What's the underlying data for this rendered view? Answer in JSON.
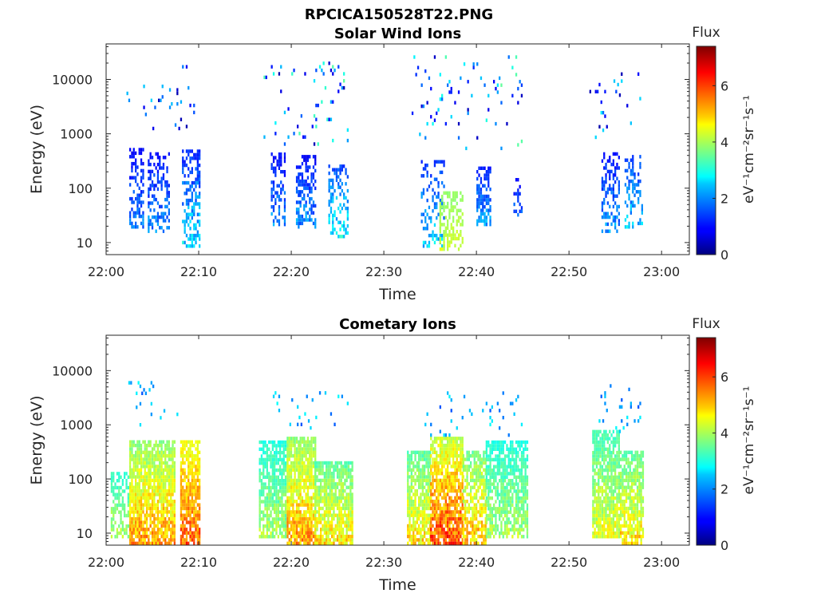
{
  "figure_title": "RPCICA150528T22.PNG",
  "chart_data": [
    {
      "type": "heatmap",
      "title": "Solar Wind Ions",
      "xlabel": "Time",
      "ylabel": "Energy (eV)",
      "x_ticks": [
        "22:00",
        "22:10",
        "22:20",
        "22:30",
        "22:40",
        "22:50",
        "23:00"
      ],
      "x_range_minutes": [
        0,
        63
      ],
      "y_scale": "log",
      "y_ticks": [
        "10",
        "100",
        "1000",
        "10000"
      ],
      "y_range": [
        6,
        45000
      ],
      "colorbar": {
        "label": "Flux",
        "units": "eV⁻¹cm⁻²sr⁻¹s⁻¹",
        "range": [
          0,
          7.4
        ],
        "ticks": [
          "0",
          "2",
          "4",
          "6"
        ]
      },
      "colormap": "jet",
      "bursts": [
        {
          "t": [
            2.5,
            4.0
          ],
          "e": [
            18,
            500
          ],
          "flux": [
            0.3,
            2.2
          ],
          "density": 0.45
        },
        {
          "t": [
            4.5,
            6.8
          ],
          "e": [
            15,
            450
          ],
          "flux": [
            0.3,
            2.4
          ],
          "density": 0.4
        },
        {
          "t": [
            8.2,
            10.0
          ],
          "e": [
            8,
            450
          ],
          "flux": [
            0.3,
            3.2
          ],
          "density": 0.45
        },
        {
          "t": [
            17.8,
            19.2
          ],
          "e": [
            20,
            400
          ],
          "flux": [
            0.2,
            2.5
          ],
          "density": 0.4
        },
        {
          "t": [
            20.5,
            22.5
          ],
          "e": [
            18,
            400
          ],
          "flux": [
            0.2,
            2.5
          ],
          "density": 0.5
        },
        {
          "t": [
            24.0,
            26.0
          ],
          "e": [
            12,
            250
          ],
          "flux": [
            0.5,
            3.5
          ],
          "density": 0.4
        },
        {
          "t": [
            34.0,
            36.5
          ],
          "e": [
            8,
            300
          ],
          "flux": [
            0.5,
            3.0
          ],
          "density": 0.3
        },
        {
          "t": [
            36.0,
            38.5
          ],
          "e": [
            7,
            80
          ],
          "flux": [
            3.5,
            4.5
          ],
          "density": 0.5
        },
        {
          "t": [
            40.0,
            41.5
          ],
          "e": [
            20,
            250
          ],
          "flux": [
            0.4,
            2.6
          ],
          "density": 0.55
        },
        {
          "t": [
            44.0,
            45.0
          ],
          "e": [
            30,
            150
          ],
          "flux": [
            0.3,
            2.0
          ],
          "density": 0.3
        },
        {
          "t": [
            53.5,
            55.5
          ],
          "e": [
            15,
            450
          ],
          "flux": [
            0.3,
            2.5
          ],
          "density": 0.45
        },
        {
          "t": [
            56.0,
            58.0
          ],
          "e": [
            18,
            400
          ],
          "flux": [
            0.5,
            3.0
          ],
          "density": 0.35
        }
      ],
      "sparse": [
        {
          "t": [
            2,
            8
          ],
          "e": [
            1000,
            8000
          ],
          "flux": [
            0.3,
            2.5
          ]
        },
        {
          "t": [
            8,
            10
          ],
          "e": [
            600,
            18000
          ],
          "flux": [
            0.3,
            2.5
          ]
        },
        {
          "t": [
            17,
            26
          ],
          "e": [
            600,
            20000
          ],
          "flux": [
            0.3,
            3.5
          ]
        },
        {
          "t": [
            33,
            45
          ],
          "e": [
            500,
            25000
          ],
          "flux": [
            0.3,
            3.5
          ]
        },
        {
          "t": [
            52,
            58
          ],
          "e": [
            800,
            12000
          ],
          "flux": [
            0.3,
            3.0
          ]
        }
      ]
    },
    {
      "type": "heatmap",
      "title": "Cometary Ions",
      "xlabel": "Time",
      "ylabel": "Energy (eV)",
      "x_ticks": [
        "22:00",
        "22:10",
        "22:20",
        "22:30",
        "22:40",
        "22:50",
        "23:00"
      ],
      "x_range_minutes": [
        0,
        63
      ],
      "y_scale": "log",
      "y_ticks": [
        "10",
        "100",
        "1000",
        "10000"
      ],
      "y_range": [
        6,
        45000
      ],
      "colorbar": {
        "label": "Flux",
        "units": "eV⁻¹cm⁻²sr⁻¹s⁻¹",
        "range": [
          0,
          7.4
        ],
        "ticks": [
          "0",
          "2",
          "4",
          "6"
        ]
      },
      "colormap": "jet",
      "bursts": [
        {
          "t": [
            0.5,
            2.5
          ],
          "e": [
            8,
            120
          ],
          "flux": [
            2.5,
            4.5
          ],
          "density": 0.45
        },
        {
          "t": [
            2.5,
            7.5
          ],
          "e": [
            6,
            500
          ],
          "flux": [
            2.8,
            6.0
          ],
          "density": 0.85
        },
        {
          "t": [
            8.0,
            10.0
          ],
          "e": [
            6,
            500
          ],
          "flux": [
            3.5,
            6.5
          ],
          "density": 0.8
        },
        {
          "t": [
            16.5,
            19.5
          ],
          "e": [
            8,
            500
          ],
          "flux": [
            2.3,
            4.5
          ],
          "density": 0.8
        },
        {
          "t": [
            19.5,
            22.5
          ],
          "e": [
            6,
            600
          ],
          "flux": [
            2.8,
            6.0
          ],
          "density": 0.85
        },
        {
          "t": [
            22.5,
            26.5
          ],
          "e": [
            6,
            200
          ],
          "flux": [
            2.5,
            5.5
          ],
          "density": 0.85
        },
        {
          "t": [
            32.5,
            35.0
          ],
          "e": [
            6,
            300
          ],
          "flux": [
            2.5,
            5.5
          ],
          "density": 0.8
        },
        {
          "t": [
            35.0,
            38.5
          ],
          "e": [
            6,
            600
          ],
          "flux": [
            3.0,
            6.8
          ],
          "density": 0.85
        },
        {
          "t": [
            38.5,
            41.0
          ],
          "e": [
            6,
            300
          ],
          "flux": [
            2.5,
            6.0
          ],
          "density": 0.7
        },
        {
          "t": [
            41.0,
            45.5
          ],
          "e": [
            8,
            500
          ],
          "flux": [
            2.3,
            4.5
          ],
          "density": 0.75
        },
        {
          "t": [
            52.5,
            55.5
          ],
          "e": [
            8,
            700
          ],
          "flux": [
            2.5,
            5.0
          ],
          "density": 0.8
        },
        {
          "t": [
            55.5,
            58.0
          ],
          "e": [
            6,
            300
          ],
          "flux": [
            2.5,
            5.5
          ],
          "density": 0.75
        }
      ],
      "sparse": [
        {
          "t": [
            2,
            8
          ],
          "e": [
            800,
            6500
          ],
          "flux": [
            1.5,
            2.8
          ]
        },
        {
          "t": [
            17,
            26
          ],
          "e": [
            700,
            4000
          ],
          "flux": [
            1.5,
            2.8
          ]
        },
        {
          "t": [
            34,
            45
          ],
          "e": [
            600,
            4000
          ],
          "flux": [
            1.5,
            2.8
          ]
        },
        {
          "t": [
            53,
            58
          ],
          "e": [
            700,
            5000
          ],
          "flux": [
            1.5,
            2.8
          ]
        }
      ]
    }
  ]
}
